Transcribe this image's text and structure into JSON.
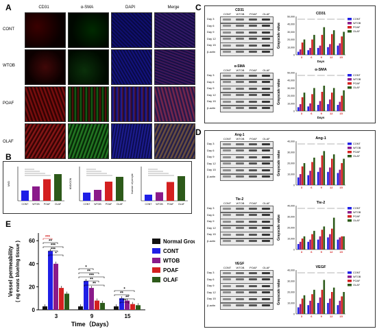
{
  "panel_a": {
    "label": "A",
    "columns": [
      "CD31",
      "α-SMA",
      "DAPI",
      "Merge"
    ],
    "rows": [
      "CONT",
      "WTOB",
      "POAF",
      "OLAF"
    ]
  },
  "panel_b": {
    "label": "B",
    "charts": [
      {
        "ylabel": "MVD",
        "categories": [
          "CONT",
          "WTOB",
          "POAF",
          "OLAF"
        ],
        "values": [
          3.0,
          4.2,
          6.3,
          7.8
        ]
      },
      {
        "ylabel": "MVD/CON",
        "categories": [
          "CONT",
          "WTOB",
          "POAF",
          "OLAF"
        ],
        "values": [
          2.4,
          3.2,
          5.6,
          7.0
        ]
      },
      {
        "ylabel": "Number of pericyte",
        "categories": [
          "CONT",
          "WTOB",
          "POAF",
          "OLAF"
        ],
        "values": [
          1.8,
          2.5,
          5.5,
          7.2
        ]
      }
    ]
  },
  "panel_c": {
    "label": "C",
    "blots": [
      {
        "title": "CD31",
        "lanes": [
          "CONT",
          "WTOB",
          "POAF",
          "OLAF"
        ],
        "rows": [
          "Day 3",
          "Day 6",
          "Day 9",
          "Day 12",
          "Day 15",
          "β-actin"
        ]
      },
      {
        "title": "α-SMA",
        "lanes": [
          "CONT",
          "WTOB",
          "POAF",
          "OLAF"
        ],
        "rows": [
          "Day 3",
          "Day 6",
          "Day 9",
          "Day 12",
          "Day 15",
          "β-actin"
        ]
      }
    ],
    "charts": [
      {
        "title": "CD31",
        "ylabel": "Grayscale value",
        "xlabel": "Days",
        "x": [
          "3",
          "6",
          "9",
          "12",
          "15"
        ],
        "yticks": [
          "0",
          "10,000",
          "20,000",
          "30,000",
          "40,000",
          "50,000"
        ],
        "ylim": [
          0,
          50000
        ],
        "series": [
          {
            "name": "CONT",
            "values": [
              4000,
              6000,
              9000,
              10000,
              12000
            ]
          },
          {
            "name": "WTOB",
            "values": [
              7000,
              9000,
              12000,
              14000,
              15000
            ]
          },
          {
            "name": "POAF",
            "values": [
              16000,
              20000,
              26000,
              27000,
              24000
            ]
          },
          {
            "name": "OLAF",
            "values": [
              20000,
              26000,
              36000,
              32000,
              30000
            ]
          }
        ]
      },
      {
        "title": "α-SMA",
        "ylabel": "Grayscale value",
        "xlabel": "Days",
        "x": [
          "3",
          "6",
          "9",
          "12",
          "15"
        ],
        "yticks": [
          "0",
          "10,000",
          "20,000",
          "30,000",
          "40,000",
          "50,000"
        ],
        "ylim": [
          0,
          50000
        ],
        "series": [
          {
            "name": "CONT",
            "values": [
              5000,
              6000,
              8000,
              9000,
              8000
            ]
          },
          {
            "name": "WTOB",
            "values": [
              9000,
              10000,
              13000,
              15000,
              12000
            ]
          },
          {
            "name": "POAF",
            "values": [
              18000,
              22000,
              25000,
              24000,
              20000
            ]
          },
          {
            "name": "OLAF",
            "values": [
              24000,
              30000,
              33000,
              30000,
              27000
            ]
          }
        ]
      }
    ]
  },
  "panel_d": {
    "label": "D",
    "blots": [
      {
        "title": "Ang-1",
        "lanes": [
          "CONT",
          "WTOB",
          "POAF",
          "OLAF"
        ],
        "rows": [
          "Day 3",
          "Day 6",
          "Day 9",
          "Day 12",
          "Day 15",
          "β-actin"
        ]
      },
      {
        "title": "Tie-2",
        "lanes": [
          "CONT",
          "WTOB",
          "POAF",
          "OLAF"
        ],
        "rows": [
          "Day 3",
          "Day 6",
          "Day 9",
          "Day 12",
          "Day 15",
          "β-actin"
        ]
      },
      {
        "title": "VEGF",
        "lanes": [
          "CONT",
          "WTOB",
          "POAF",
          "OLAF"
        ],
        "rows": [
          "Day 3",
          "Day 6",
          "Day 9",
          "Day 12",
          "Day 15",
          "β-actin"
        ]
      }
    ],
    "charts": [
      {
        "title": "Ang-1",
        "ylabel": "Grayscale value",
        "x": [
          "3",
          "6",
          "9",
          "12",
          "15"
        ],
        "yticks": [
          "0",
          "10,000",
          "20,000",
          "30,000",
          "40,000"
        ],
        "ylim": [
          0,
          40000
        ],
        "series": [
          {
            "name": "CONT",
            "values": [
              7000,
              9000,
              12000,
              12000,
              11000
            ]
          },
          {
            "name": "WTOB",
            "values": [
              10000,
              13000,
              16000,
              16000,
              14000
            ]
          },
          {
            "name": "POAF",
            "values": [
              17000,
              21000,
              27000,
              24000,
              20000
            ]
          },
          {
            "name": "OLAF",
            "values": [
              20000,
              25000,
              31000,
              28000,
              24000
            ]
          }
        ]
      },
      {
        "title": "Tie-2",
        "ylabel": "Grayscale value",
        "x": [
          "3",
          "6",
          "9",
          "12",
          "15"
        ],
        "yticks": [
          "0",
          "10,000",
          "20,000",
          "30,000",
          "40,000"
        ],
        "ylim": [
          0,
          40000
        ],
        "series": [
          {
            "name": "CONT",
            "values": [
              5000,
              7000,
              9000,
              11000,
              9000
            ]
          },
          {
            "name": "WTOB",
            "values": [
              7000,
              9000,
              12000,
              14000,
              11000
            ]
          },
          {
            "name": "POAF",
            "values": [
              10000,
              14000,
              18000,
              19000,
              12000
            ]
          },
          {
            "name": "OLAF",
            "values": [
              12000,
              17000,
              21000,
              29000,
              12000
            ]
          }
        ]
      },
      {
        "title": "VEGF",
        "ylabel": "Grayscale value",
        "x": [
          "3",
          "6",
          "9",
          "12",
          "15"
        ],
        "yticks": [
          "0",
          "10,000",
          "20,000",
          "30,000",
          "40,000"
        ],
        "ylim": [
          0,
          40000
        ],
        "series": [
          {
            "name": "CONT",
            "values": [
              6000,
              8000,
              10000,
              10000,
              8000
            ]
          },
          {
            "name": "WTOB",
            "values": [
              9000,
              12000,
              15000,
              14000,
              12000
            ]
          },
          {
            "name": "POAF",
            "values": [
              14000,
              18000,
              22000,
              20000,
              16000
            ]
          },
          {
            "name": "OLAF",
            "values": [
              17000,
              22000,
              31000,
              24000,
              20000
            ]
          }
        ]
      }
    ]
  },
  "panel_e": {
    "label": "E",
    "ylabel_line1": "Vessel permeability",
    "ylabel_line2": "( ng evans blue/mg tissue )",
    "xlabel": "Time（Days）",
    "yticks": [
      "0",
      "20",
      "40",
      "60"
    ],
    "ylim": [
      0,
      60
    ],
    "categories": [
      "3",
      "9",
      "15"
    ],
    "series": [
      {
        "name": "Normal Group",
        "values": [
          3,
          3,
          3
        ]
      },
      {
        "name": "CONT",
        "values": [
          51,
          25,
          10
        ]
      },
      {
        "name": "WTOB",
        "values": [
          40,
          19,
          8
        ]
      },
      {
        "name": "POAF",
        "values": [
          19,
          8,
          5
        ]
      },
      {
        "name": "OLAF",
        "values": [
          14,
          6,
          4
        ]
      }
    ],
    "significance_labels": [
      "***",
      "**",
      "***",
      "***",
      "*",
      "*",
      "**",
      "***",
      "**",
      "**",
      "*",
      "**",
      "**",
      "**"
    ]
  },
  "colors": {
    "CONT": "#1f1fe6",
    "WTOB": "#8a1a8a",
    "POAF": "#d42020",
    "OLAF": "#2d5a1a",
    "Normal Group": "#111111"
  },
  "legend_short": {
    "CONT": "CONT",
    "WTOB": "WTOB",
    "POAF": "POAF",
    "OLAF": "OLAF"
  }
}
